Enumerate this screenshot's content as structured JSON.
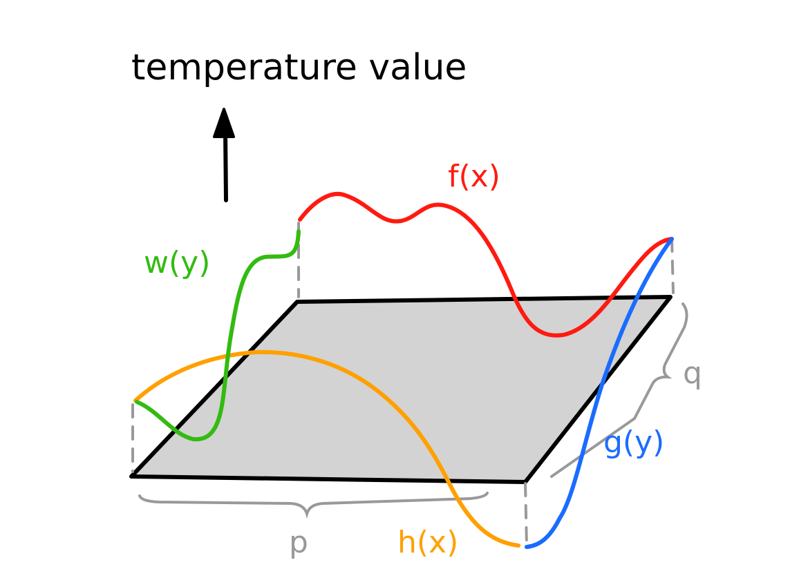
{
  "axis": {
    "label": "temperature value"
  },
  "curves": {
    "f": {
      "label": "f(x)",
      "color": "#ff1a10"
    },
    "w": {
      "label": "w(y)",
      "color": "#33bb11"
    },
    "h": {
      "label": "h(x)",
      "color": "#ffa000"
    },
    "g": {
      "label": "g(y)",
      "color": "#1a6cff"
    }
  },
  "dimensions": {
    "p": {
      "label": "p",
      "color": "#999999"
    },
    "q": {
      "label": "q",
      "color": "#999999"
    }
  },
  "plate": {
    "fill": "#d3d3d3",
    "edge": "#000000"
  }
}
